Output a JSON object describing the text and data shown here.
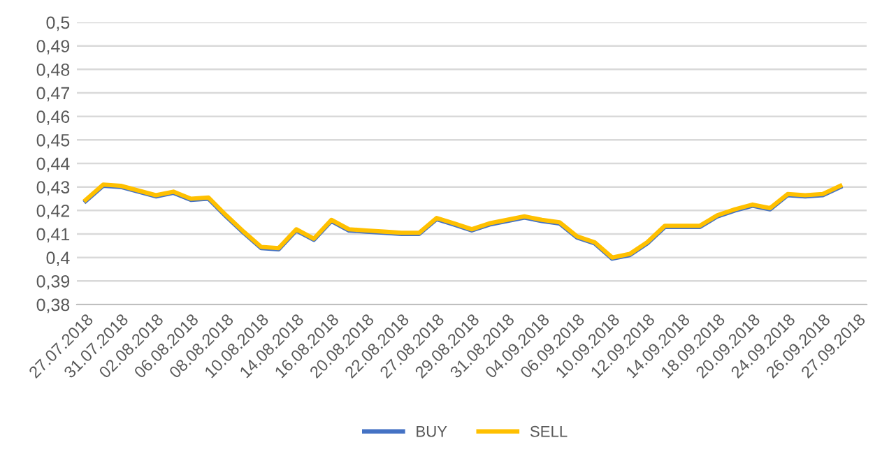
{
  "chart_data": {
    "type": "line",
    "categories": [
      "27.07.2018",
      null,
      "31.07.2018",
      null,
      "02.08.2018",
      null,
      "06.08.2018",
      null,
      "08.08.2018",
      null,
      "10.08.2018",
      null,
      "14.08.2018",
      null,
      "16.08.2018",
      null,
      "20.08.2018",
      null,
      "22.08.2018",
      null,
      "27.08.2018",
      null,
      "29.08.2018",
      null,
      "31.08.2018",
      null,
      "04.09.2018",
      null,
      "06.09.2018",
      null,
      "10.09.2018",
      null,
      "12.09.2018",
      null,
      "14.09.2018",
      null,
      "18.09.2018",
      null,
      "20.09.2018",
      null,
      "24.09.2018",
      null,
      "26.09.2018",
      null,
      "27.09.2018"
    ],
    "series": [
      {
        "name": "BUY",
        "color": "#4472c4",
        "values": [
          0.424,
          0.4305,
          0.43,
          0.428,
          0.426,
          0.4275,
          0.4245,
          0.425,
          0.4175,
          0.4105,
          0.404,
          0.4035,
          0.4115,
          0.4075,
          0.4155,
          0.4115,
          0.411,
          0.4105,
          0.41,
          0.41,
          0.4163,
          0.414,
          0.4115,
          0.414,
          0.4155,
          0.417,
          0.4155,
          0.4145,
          0.4085,
          0.406,
          0.3995,
          0.401,
          0.406,
          0.413,
          0.413,
          0.413,
          0.4175,
          0.42,
          0.422,
          0.4205,
          0.4265,
          0.426,
          0.4265,
          0.43,
          null
        ]
      },
      {
        "name": "SELL",
        "color": "#ffc000",
        "values": [
          0.4245,
          0.431,
          0.4305,
          0.4285,
          0.4265,
          0.428,
          0.425,
          0.4255,
          0.418,
          0.411,
          0.4045,
          0.404,
          0.412,
          0.408,
          0.416,
          0.412,
          0.4115,
          0.411,
          0.4105,
          0.4105,
          0.4168,
          0.4145,
          0.412,
          0.4145,
          0.416,
          0.4175,
          0.416,
          0.415,
          0.409,
          0.4065,
          0.4,
          0.4015,
          0.4065,
          0.4135,
          0.4135,
          0.4135,
          0.418,
          0.4205,
          0.4225,
          0.421,
          0.427,
          0.4265,
          0.427,
          0.4305,
          null
        ]
      }
    ],
    "ylim": [
      0.38,
      0.5
    ],
    "yticks": [
      {
        "value": 0.38,
        "label": "0,38"
      },
      {
        "value": 0.39,
        "label": "0,39"
      },
      {
        "value": 0.4,
        "label": "0,4"
      },
      {
        "value": 0.41,
        "label": "0,41"
      },
      {
        "value": 0.42,
        "label": "0,42"
      },
      {
        "value": 0.43,
        "label": "0,43"
      },
      {
        "value": 0.44,
        "label": "0,44"
      },
      {
        "value": 0.45,
        "label": "0,45"
      },
      {
        "value": 0.46,
        "label": "0,46"
      },
      {
        "value": 0.47,
        "label": "0,47"
      },
      {
        "value": 0.48,
        "label": "0,48"
      },
      {
        "value": 0.49,
        "label": "0,49"
      },
      {
        "value": 0.5,
        "label": "0,5"
      }
    ],
    "grid": "y",
    "legend": "bottom",
    "marker": "none",
    "line_style": "solid"
  }
}
